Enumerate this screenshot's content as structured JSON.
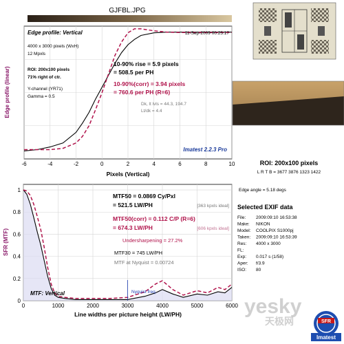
{
  "image_title": "GJFBL.JPG",
  "edge": {
    "panel_title": "Edge profile: Vertical",
    "datetime": "11-Sep-2009 00:25:17",
    "info": [
      "4000 x 3000 pixels (WxH)",
      "12 Mpxls",
      "ROI: 200x100 pixels",
      "71% right of ctr.",
      "Y-channel (YR71)",
      "Gamma = 0.5"
    ],
    "rise_line": "10-90% rise = 5.9 pixels",
    "rise_ph": "= 508.5 per PH",
    "corr_line": "10-90%(corr) = 3.94 pixels",
    "corr_ph": "= 760.6 per PH  (R=6)",
    "dk": "Dk, lt lvls = 44.3, 194.7",
    "ltdk": "Lt/dk = 4.4",
    "brand": "Imatest 2.2.3 Pro"
  },
  "mtf": {
    "panel_title": "MTF: Vertical",
    "mtf50": "MTF50 = 0.0869 Cy/Pxl",
    "mtf50_lw": "= 521.5 LW/PH",
    "mtf50_ideal": "[363 kpxls ideal]",
    "mtf50c": "MTF50(corr) = 0.112 C/P  (R=6)",
    "mtf50c_lw": "= 674.3 LW/PH",
    "mtf50c_ideal": "[606 kpxls ideal]",
    "under": "Undersharpening = 27.2%",
    "mtf30": "MTF30 = 745 LW/PH",
    "nyq": "MTF at Nyquist = 0.00724",
    "nyq_label": "Nyquist freq."
  },
  "roi": {
    "title": "ROI: 200x100 pixels",
    "lrtb": "L R T B = 3677 3876  1323 1422",
    "edge_angle": "Edge angle = 5.18 degs"
  },
  "exif": {
    "title": "Selected EXIF data",
    "rows": [
      {
        "k": "File:",
        "v": "2009:09:10 16:53:38"
      },
      {
        "k": "Make:",
        "v": "NIKON"
      },
      {
        "k": "Model:",
        "v": "COOLPIX S1000pj"
      },
      {
        "k": "Taken:",
        "v": "2009:09:10 16:53:39"
      },
      {
        "k": "Res:",
        "v": "4000 x 3000"
      },
      {
        "k": "FL:",
        "v": ""
      },
      {
        "k": "Exp:",
        "v": "0.017 s  (1/58)"
      },
      {
        "k": "Aper:",
        "v": "f/3.9"
      },
      {
        "k": "ISO:",
        "v": "80"
      }
    ]
  },
  "watermark": {
    "text": "yesky",
    "cn": "天极网",
    "logo": "SFR",
    "logo_brand": "Imatest"
  },
  "chart_data": [
    {
      "type": "line",
      "title": "Edge profile: Vertical",
      "xlabel": "Pixels (Vertical)",
      "ylabel": "Edge profile (linear)",
      "xlim": [
        -6,
        10
      ],
      "ylim": [
        0,
        1
      ],
      "xticks": [
        -6,
        -4,
        -2,
        0,
        2,
        4,
        6,
        8,
        10
      ],
      "grid": true,
      "series": [
        {
          "color": "#000000",
          "style": "solid",
          "x": [
            -6,
            -5,
            -4,
            -3,
            -2,
            -1.5,
            -1,
            -0.5,
            0,
            0.5,
            1,
            1.5,
            2,
            2.5,
            3,
            4,
            5,
            6,
            7,
            8,
            9,
            10
          ],
          "y": [
            0.06,
            0.07,
            0.09,
            0.12,
            0.2,
            0.27,
            0.35,
            0.45,
            0.54,
            0.63,
            0.72,
            0.8,
            0.86,
            0.9,
            0.93,
            0.95,
            0.955,
            0.955,
            0.955,
            0.955,
            0.955,
            0.955
          ]
        },
        {
          "color": "#b0124a",
          "style": "dashed",
          "x": [
            -6,
            -5,
            -4,
            -3,
            -2,
            -1.5,
            -1,
            -0.5,
            0,
            0.5,
            1,
            1.5,
            2,
            2.5,
            3,
            4,
            5,
            6,
            7,
            8,
            9,
            10
          ],
          "y": [
            0.07,
            0.07,
            0.07,
            0.08,
            0.12,
            0.17,
            0.25,
            0.37,
            0.5,
            0.64,
            0.78,
            0.88,
            0.95,
            0.98,
            0.98,
            0.965,
            0.955,
            0.952,
            0.952,
            0.952,
            0.952,
            0.952
          ]
        }
      ]
    },
    {
      "type": "line",
      "title": "MTF: Vertical",
      "xlabel": "Line widths per picture height (LW/PH)",
      "ylabel": "SFR (MTF)",
      "xlim": [
        0,
        6000
      ],
      "ylim": [
        0,
        1.05
      ],
      "xticks": [
        0,
        1000,
        2000,
        3000,
        4000,
        5000,
        6000
      ],
      "yticks": [
        0,
        0.2,
        0.4,
        0.6,
        0.8,
        1
      ],
      "grid": true,
      "nyquist_x": 3000,
      "series": [
        {
          "color": "#000000",
          "style": "solid",
          "x": [
            0,
            100,
            200,
            300,
            400,
            500,
            600,
            700,
            800,
            900,
            1000,
            1200,
            1500,
            2000,
            2500,
            3000,
            3500,
            3800,
            4000,
            4300,
            4600,
            5000,
            5300,
            5600,
            5800,
            6000
          ],
          "y": [
            1.0,
            0.96,
            0.87,
            0.75,
            0.62,
            0.5,
            0.36,
            0.22,
            0.11,
            0.05,
            0.03,
            0.02,
            0.01,
            0.01,
            0.01,
            0.01,
            0.04,
            0.07,
            0.1,
            0.06,
            0.03,
            0.06,
            0.05,
            0.08,
            0.07,
            0.12
          ]
        },
        {
          "color": "#b0124a",
          "style": "dashed",
          "x": [
            0,
            100,
            200,
            300,
            400,
            500,
            600,
            700,
            800,
            900,
            1000,
            1200,
            1500,
            2000,
            2500,
            3000,
            3500,
            3800,
            4000,
            4300,
            4600,
            5000,
            5300,
            5600,
            5800,
            6000
          ],
          "y": [
            1.0,
            0.99,
            0.95,
            0.87,
            0.76,
            0.64,
            0.48,
            0.3,
            0.15,
            0.07,
            0.04,
            0.03,
            0.02,
            0.02,
            0.02,
            0.03,
            0.08,
            0.15,
            0.18,
            0.1,
            0.05,
            0.09,
            0.07,
            0.12,
            0.1,
            0.15
          ]
        }
      ]
    }
  ]
}
